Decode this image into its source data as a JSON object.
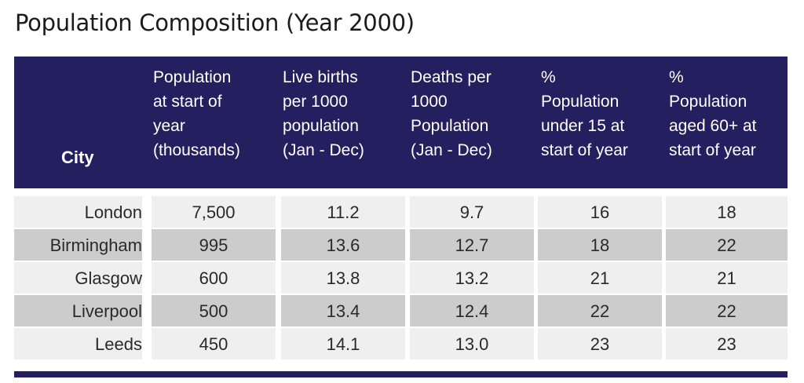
{
  "title": "Population Composition (Year 2000)",
  "colors": {
    "header_bg": "#24205f",
    "header_text": "#ffffff",
    "row_light": "#efefef",
    "row_dark": "#cccccc"
  },
  "chart_data": {
    "type": "table",
    "title": "Population Composition (Year 2000)",
    "columns": [
      "City",
      "Population\nat start of\nyear\n(thousands)",
      "Live births\nper 1000\npopulation\n(Jan - Dec)",
      "Deaths per\n1000\nPopulation\n(Jan - Dec)",
      "%\nPopulation\nunder 15 at\nstart of year",
      "%\nPopulation\naged 60+ at\nstart of year"
    ],
    "rows": [
      [
        "London",
        "7,500",
        "11.2",
        "9.7",
        "16",
        "18"
      ],
      [
        "Birmingham",
        "995",
        "13.6",
        "12.7",
        "18",
        "22"
      ],
      [
        "Glasgow",
        "600",
        "13.8",
        "13.2",
        "21",
        "21"
      ],
      [
        "Liverpool",
        "500",
        "13.4",
        "12.4",
        "22",
        "22"
      ],
      [
        "Leeds",
        "450",
        "14.1",
        "13.0",
        "23",
        "23"
      ]
    ]
  }
}
